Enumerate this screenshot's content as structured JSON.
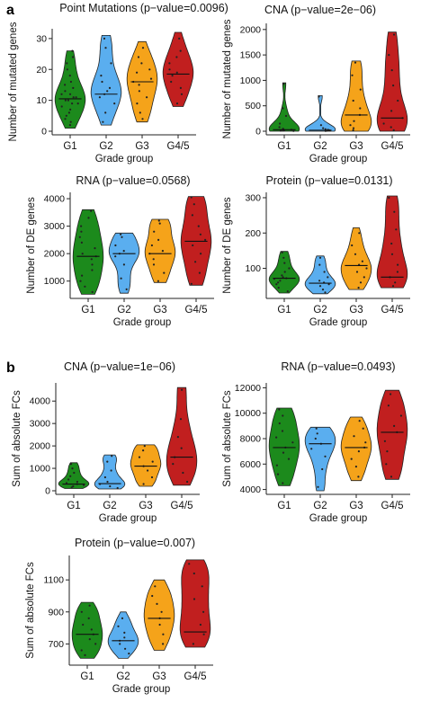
{
  "panels": {
    "a": "a",
    "b": "b"
  },
  "colors": {
    "G1": "#1c8a1c",
    "G2": "#5aaeef",
    "G3": "#f5a31a",
    "G4/5": "#c11f1f"
  },
  "chart_data": [
    {
      "id": "a-point-mutations",
      "type": "violin",
      "title": "Point Mutations (p−value=0.0096)",
      "xlabel": "Grade group",
      "ylabel": "Number of mutated genes",
      "categories": [
        "G1",
        "G2",
        "G3",
        "G4/5"
      ],
      "ylim": [
        0,
        32
      ],
      "yticks": [
        0,
        10,
        20,
        30
      ],
      "groups": [
        {
          "name": "G1",
          "min": 1,
          "max": 26,
          "median": 10.5,
          "points": [
            2,
            3,
            4,
            5,
            6,
            7,
            8,
            9,
            9,
            10,
            10,
            11,
            11,
            12,
            12,
            13,
            14,
            15,
            16,
            18,
            20,
            22,
            24,
            26
          ]
        },
        {
          "name": "G2",
          "min": 2,
          "max": 31,
          "median": 12,
          "points": [
            3,
            6,
            9,
            11,
            12,
            13,
            14,
            16,
            18,
            22,
            27,
            30
          ]
        },
        {
          "name": "G3",
          "min": 3,
          "max": 29,
          "median": 16,
          "points": [
            4,
            6,
            9,
            11,
            13,
            15,
            16,
            17,
            19,
            20,
            22,
            24,
            27
          ]
        },
        {
          "name": "G4/5",
          "min": 8,
          "max": 32,
          "median": 18.5,
          "points": [
            9,
            12,
            14,
            16,
            18,
            19,
            20,
            22,
            24,
            26,
            30
          ]
        }
      ]
    },
    {
      "id": "a-cna",
      "type": "violin",
      "title": "CNA (p−value=2e−06)",
      "xlabel": "Grade group",
      "ylabel": "Number of mutated genes",
      "categories": [
        "G1",
        "G2",
        "G3",
        "G4/5"
      ],
      "ylim": [
        0,
        2050
      ],
      "yticks": [
        0,
        500,
        1000,
        1500,
        2000
      ],
      "groups": [
        {
          "name": "G1",
          "min": 0,
          "max": 950,
          "median": 30,
          "points": [
            5,
            10,
            15,
            20,
            25,
            30,
            40,
            50,
            80,
            150,
            300,
            450,
            930
          ]
        },
        {
          "name": "G2",
          "min": 0,
          "max": 700,
          "median": 20,
          "points": [
            5,
            10,
            15,
            20,
            30,
            40,
            60,
            120,
            680
          ]
        },
        {
          "name": "G3",
          "min": 0,
          "max": 1380,
          "median": 320,
          "points": [
            20,
            60,
            120,
            200,
            320,
            450,
            600,
            820,
            1100,
            1350
          ]
        },
        {
          "name": "G4/5",
          "min": 0,
          "max": 1950,
          "median": 260,
          "points": [
            20,
            80,
            150,
            260,
            400,
            600,
            900,
            1200,
            1500,
            1900
          ]
        }
      ]
    },
    {
      "id": "a-rna",
      "type": "violin",
      "title": "RNA (p−value=0.0568)",
      "xlabel": "Grade group",
      "ylabel": "Number of DE genes",
      "categories": [
        "G1",
        "G2",
        "G3",
        "G4/5"
      ],
      "ylim": [
        500,
        4100
      ],
      "yticks": [
        1000,
        2000,
        3000,
        4000
      ],
      "groups": [
        {
          "name": "G1",
          "min": 520,
          "max": 3600,
          "median": 1900,
          "points": [
            600,
            800,
            1000,
            1200,
            1400,
            1600,
            1800,
            1900,
            2000,
            2200,
            2400,
            2600,
            2800,
            3000,
            3300,
            3550
          ]
        },
        {
          "name": "G2",
          "min": 560,
          "max": 2750,
          "median": 2000,
          "points": [
            700,
            1100,
            1600,
            1900,
            2000,
            2100,
            2300,
            2600,
            2700
          ]
        },
        {
          "name": "G3",
          "min": 950,
          "max": 3250,
          "median": 2000,
          "points": [
            1000,
            1300,
            1600,
            1800,
            2000,
            2100,
            2300,
            2500,
            2800,
            3100,
            3200
          ]
        },
        {
          "name": "G4/5",
          "min": 850,
          "max": 4080,
          "median": 2450,
          "points": [
            900,
            1300,
            1700,
            2000,
            2300,
            2500,
            2700,
            3000,
            3400,
            3800,
            4050
          ]
        }
      ]
    },
    {
      "id": "a-protein",
      "type": "violin",
      "title": "Protein (p−value=0.0131)",
      "xlabel": "Grade group",
      "ylabel": "Number of DE genes",
      "categories": [
        "G1",
        "G2",
        "G3",
        "G4/5"
      ],
      "ylim": [
        25,
        305
      ],
      "yticks": [
        100,
        200,
        300
      ],
      "groups": [
        {
          "name": "G1",
          "min": 30,
          "max": 148,
          "median": 72,
          "points": [
            35,
            45,
            55,
            60,
            65,
            70,
            72,
            75,
            80,
            90,
            100,
            115,
            130,
            145
          ]
        },
        {
          "name": "G2",
          "min": 28,
          "max": 135,
          "median": 58,
          "points": [
            32,
            40,
            50,
            55,
            60,
            65,
            75,
            90,
            110,
            130
          ]
        },
        {
          "name": "G3",
          "min": 40,
          "max": 215,
          "median": 108,
          "points": [
            45,
            60,
            75,
            90,
            100,
            110,
            120,
            140,
            165,
            200
          ]
        },
        {
          "name": "G4/5",
          "min": 45,
          "max": 305,
          "median": 75,
          "points": [
            50,
            60,
            75,
            90,
            110,
            140,
            170,
            210,
            260,
            300
          ]
        }
      ]
    },
    {
      "id": "b-cna",
      "type": "violin",
      "title": "CNA (p−value=1e−06)",
      "xlabel": "Grade group",
      "ylabel": "Sum of absolute FCs",
      "categories": [
        "G1",
        "G2",
        "G3",
        "G4/5"
      ],
      "ylim": [
        0,
        4650
      ],
      "yticks": [
        0,
        1000,
        2000,
        3000,
        4000
      ],
      "groups": [
        {
          "name": "G1",
          "min": 100,
          "max": 1250,
          "median": 300,
          "points": [
            150,
            200,
            250,
            300,
            350,
            400,
            500,
            650,
            800,
            1000,
            1200
          ]
        },
        {
          "name": "G2",
          "min": 80,
          "max": 1600,
          "median": 320,
          "points": [
            120,
            200,
            300,
            400,
            600,
            900,
            1300,
            1550
          ]
        },
        {
          "name": "G3",
          "min": 200,
          "max": 2050,
          "median": 1100,
          "points": [
            300,
            600,
            900,
            1100,
            1300,
            1500,
            1800,
            2000
          ]
        },
        {
          "name": "G4/5",
          "min": 250,
          "max": 4600,
          "median": 1500,
          "points": [
            400,
            800,
            1200,
            1500,
            1900,
            2400,
            3200,
            4500
          ]
        }
      ]
    },
    {
      "id": "b-rna",
      "type": "violin",
      "title": "RNA (p−value=0.0493)",
      "xlabel": "Grade group",
      "ylabel": "Sum of absolute FCs",
      "categories": [
        "G1",
        "G2",
        "G3",
        "G4/5"
      ],
      "ylim": [
        3900,
        12100
      ],
      "yticks": [
        4000,
        6000,
        8000,
        10000,
        12000
      ],
      "groups": [
        {
          "name": "G1",
          "min": 4300,
          "max": 10400,
          "median": 7300,
          "points": [
            4500,
            5200,
            5900,
            6400,
            6900,
            7300,
            7700,
            8100,
            8600,
            9200,
            9800,
            10300
          ]
        },
        {
          "name": "G2",
          "min": 3900,
          "max": 8900,
          "median": 7600,
          "points": [
            4200,
            5600,
            6600,
            7200,
            7600,
            8000,
            8400,
            8800
          ]
        },
        {
          "name": "G3",
          "min": 4700,
          "max": 9700,
          "median": 7300,
          "points": [
            5000,
            5800,
            6400,
            7000,
            7300,
            7700,
            8200,
            8800,
            9400
          ]
        },
        {
          "name": "G4/5",
          "min": 4800,
          "max": 11800,
          "median": 8500,
          "points": [
            5000,
            6000,
            7000,
            7800,
            8500,
            9000,
            9800,
            10600,
            11500
          ]
        }
      ]
    },
    {
      "id": "b-protein",
      "type": "violin",
      "title": "Protein (p−value=0.007)",
      "xlabel": "Grade group",
      "ylabel": "Sum of absolute FCs",
      "categories": [
        "G1",
        "G2",
        "G3",
        "G4/5"
      ],
      "ylim": [
        590,
        1230
      ],
      "yticks": [
        700,
        900,
        1100
      ],
      "groups": [
        {
          "name": "G1",
          "min": 610,
          "max": 960,
          "median": 760,
          "points": [
            630,
            660,
            700,
            730,
            760,
            790,
            820,
            860,
            900,
            940
          ]
        },
        {
          "name": "G2",
          "min": 610,
          "max": 900,
          "median": 720,
          "points": [
            640,
            670,
            700,
            720,
            740,
            770,
            810,
            860
          ]
        },
        {
          "name": "G3",
          "min": 660,
          "max": 1100,
          "median": 860,
          "points": [
            700,
            760,
            820,
            860,
            900,
            950,
            1000,
            1060
          ]
        },
        {
          "name": "G4/5",
          "min": 680,
          "max": 1225,
          "median": 775,
          "points": [
            700,
            760,
            820,
            900,
            980,
            1060,
            1140,
            1200
          ]
        }
      ]
    }
  ]
}
